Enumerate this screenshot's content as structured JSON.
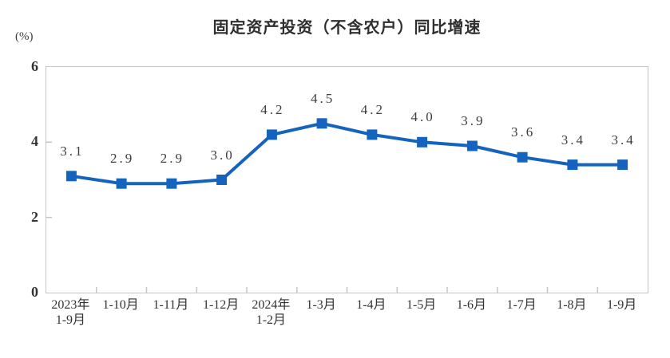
{
  "chart_data": {
    "type": "line",
    "title": "固定资产投资（不含农户）同比增速",
    "ylabel": "(%)",
    "xlabel": "",
    "categories": [
      "2023年\n1-9月",
      "1-10月",
      "1-11月",
      "1-12月",
      "2024年\n1-2月",
      "1-3月",
      "1-4月",
      "1-5月",
      "1-6月",
      "1-7月",
      "1-8月",
      "1-9月"
    ],
    "series": [
      {
        "name": "固定资产投资（不含农户）同比增速",
        "values": [
          3.1,
          2.9,
          2.9,
          3.0,
          4.2,
          4.5,
          4.2,
          4.0,
          3.9,
          3.6,
          3.4,
          3.4
        ]
      }
    ],
    "ylim": [
      0,
      6
    ],
    "yticks": [
      0,
      2,
      4,
      6
    ],
    "grid": "off",
    "legend": "none",
    "data_labels": "above-points",
    "colors": {
      "line": "#1463be",
      "marker": "#1463be",
      "title": "#2f2f2f",
      "labels": "#3d3d3d",
      "axis_border": "#c5c5c5"
    }
  }
}
